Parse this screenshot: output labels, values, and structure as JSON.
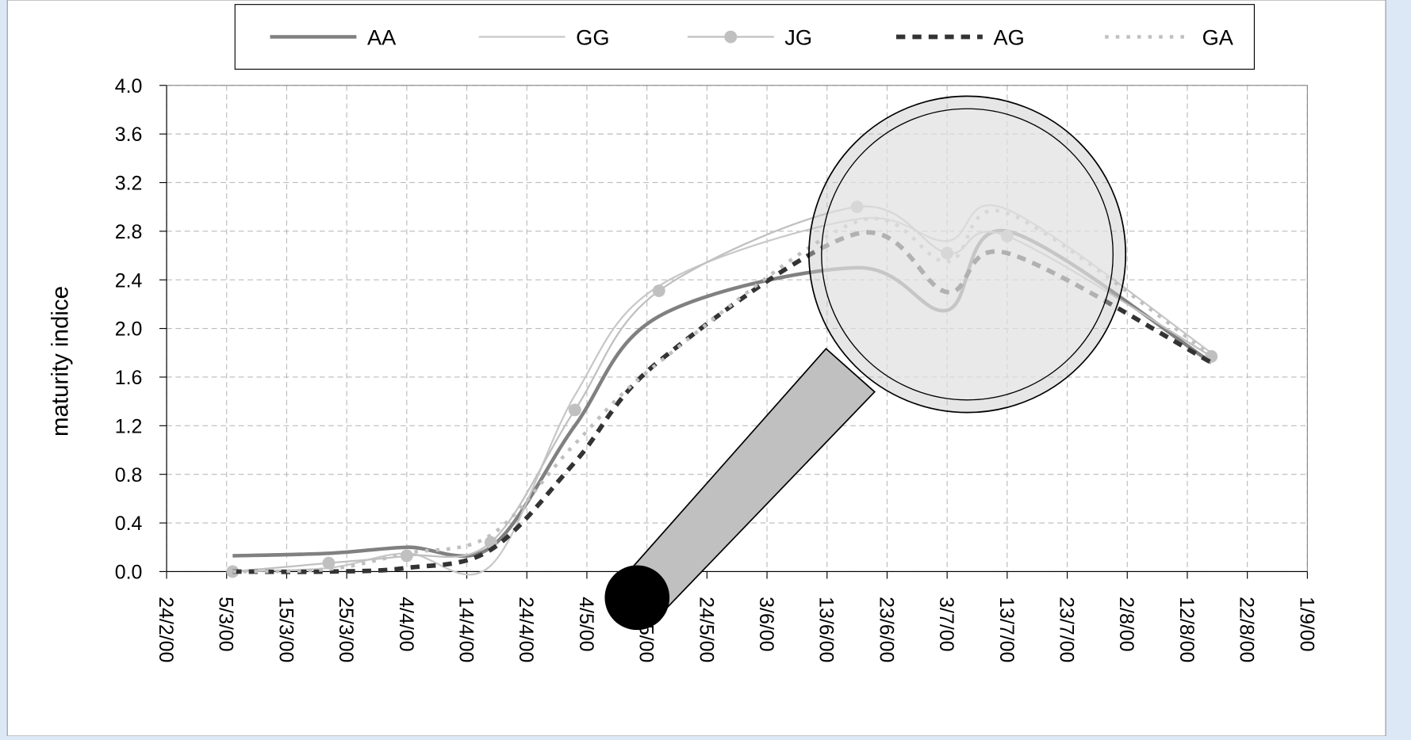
{
  "chart_data": {
    "type": "line",
    "y_label": "maturity indice",
    "x": [
      "6/3/00",
      "22/3/00",
      "4/4/00",
      "18/4/00",
      "2/5/00",
      "16/5/00",
      "18/6/00",
      "3/7/00",
      "13/7/00",
      "16/8/00"
    ],
    "xlim": [
      "24/2/00",
      "1/9/00"
    ],
    "xticks": [
      "24/2/00",
      "5/3/00",
      "15/3/00",
      "25/3/00",
      "4/4/00",
      "14/4/00",
      "24/4/00",
      "4/5/00",
      "14/5/00",
      "24/5/00",
      "3/6/00",
      "13/6/00",
      "23/6/00",
      "3/7/00",
      "13/7/00",
      "23/7/00",
      "2/8/00",
      "12/8/00",
      "22/8/00",
      "1/9/00"
    ],
    "ylim": [
      0,
      4
    ],
    "yticks": [
      {
        "value": 0,
        "label": "0.0"
      },
      0.4,
      0.8,
      1.2,
      1.6,
      {
        "value": 2,
        "label": "2.0"
      },
      2.4,
      2.8,
      3.2,
      3.6,
      {
        "value": 4,
        "label": "4.0"
      }
    ],
    "grid": true,
    "series": [
      {
        "name": "AA",
        "color": "#808080",
        "line_style": "thick",
        "values": [
          0.13,
          0.15,
          0.2,
          0.2,
          1.2,
          2.1,
          2.5,
          2.15,
          2.8,
          1.72
        ]
      },
      {
        "name": "GG",
        "color": "#c8c8c8",
        "line_style": "thin",
        "values": [
          0.0,
          0.03,
          0.15,
          0.05,
          1.45,
          2.35,
          2.9,
          2.72,
          2.98,
          1.8
        ]
      },
      {
        "name": "JG",
        "color": "#c0c0c0",
        "line_style": "thin",
        "marker": true,
        "values": [
          0.0,
          0.07,
          0.13,
          0.24,
          1.33,
          2.31,
          3.0,
          2.62,
          2.76,
          1.77
        ]
      },
      {
        "name": "AG",
        "color": "#333333",
        "line_style": "dashed",
        "values": [
          0.0,
          0.0,
          0.03,
          0.18,
          0.9,
          1.73,
          2.78,
          2.3,
          2.62,
          1.72
        ]
      },
      {
        "name": "GA",
        "color": "#c0c0c0",
        "line_style": "dotted",
        "values": [
          0.0,
          0.02,
          0.15,
          0.3,
          1.05,
          1.72,
          2.88,
          2.55,
          2.95,
          1.78
        ]
      }
    ]
  }
}
